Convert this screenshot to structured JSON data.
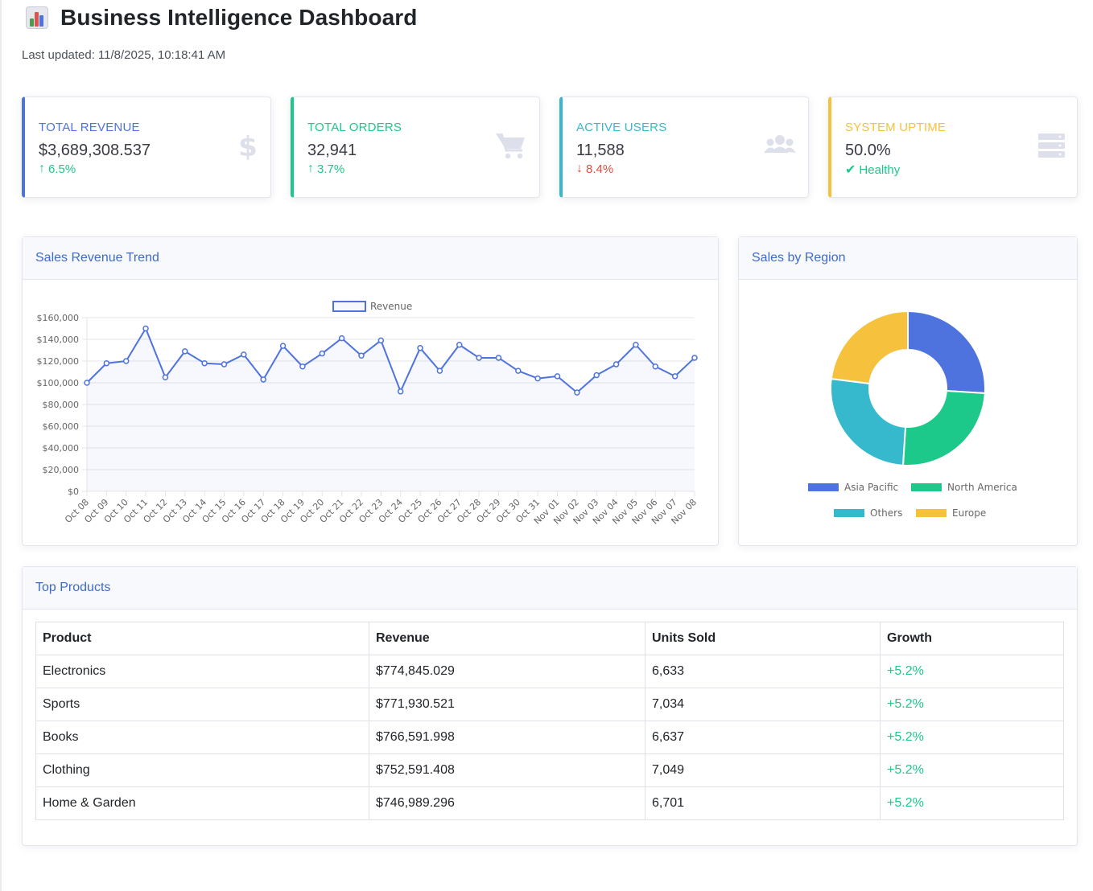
{
  "header": {
    "title": "Business Intelligence Dashboard",
    "last_updated_label": "Last updated:",
    "last_updated_value": "11/8/2025, 10:18:41 AM"
  },
  "kpis": [
    {
      "label": "Total Revenue",
      "value": "$3,689,308.537",
      "change": "6.5%",
      "direction": "up",
      "icon": "dollar-icon",
      "accent": "#4e73df"
    },
    {
      "label": "Total Orders",
      "value": "32,941",
      "change": "3.7%",
      "direction": "up",
      "icon": "cart-icon",
      "accent": "#1cc88a"
    },
    {
      "label": "Active Users",
      "value": "11,588",
      "change": "8.4%",
      "direction": "down",
      "icon": "users-icon",
      "accent": "#36b9cc"
    },
    {
      "label": "System Uptime",
      "value": "50.0%",
      "change": "Healthy",
      "direction": "check",
      "icon": "server-icon",
      "accent": "#f6c23e"
    }
  ],
  "colors": {
    "up": "#1cc88a",
    "down": "#e74a3b",
    "icon_muted": "#dddfeb",
    "line": "#4e73df"
  },
  "sales_trend": {
    "title": "Sales Revenue Trend",
    "chart_data": {
      "type": "line",
      "legend_position": "top-center",
      "grid": true,
      "categories": [
        "Oct 08",
        "Oct 09",
        "Oct 10",
        "Oct 11",
        "Oct 12",
        "Oct 13",
        "Oct 14",
        "Oct 15",
        "Oct 16",
        "Oct 17",
        "Oct 18",
        "Oct 19",
        "Oct 20",
        "Oct 21",
        "Oct 22",
        "Oct 23",
        "Oct 24",
        "Oct 25",
        "Oct 26",
        "Oct 27",
        "Oct 28",
        "Oct 29",
        "Oct 30",
        "Oct 31",
        "Nov 01",
        "Nov 02",
        "Nov 03",
        "Nov 04",
        "Nov 05",
        "Nov 06",
        "Nov 07",
        "Nov 08"
      ],
      "series": [
        {
          "name": "Revenue",
          "values": [
            100000,
            118000,
            120000,
            150000,
            105000,
            129000,
            118000,
            117000,
            126000,
            103000,
            134000,
            115000,
            127000,
            141000,
            125000,
            139000,
            92000,
            132000,
            111000,
            135000,
            123000,
            123000,
            111000,
            104000,
            106000,
            91000,
            107000,
            117000,
            135000,
            115000,
            106000,
            123000
          ]
        }
      ],
      "ylim": [
        0,
        160000
      ],
      "yticks": [
        "$0",
        "$20,000",
        "$40,000",
        "$60,000",
        "$80,000",
        "$100,000",
        "$120,000",
        "$140,000",
        "$160,000"
      ]
    }
  },
  "region": {
    "title": "Sales by Region",
    "chart_data": {
      "type": "pie",
      "legend_position": "bottom",
      "categories": [
        "Asia Pacific",
        "North America",
        "Others",
        "Europe"
      ],
      "values": [
        26,
        25,
        26,
        23
      ],
      "colors": [
        "#4e73df",
        "#1cc88a",
        "#36b9cc",
        "#f6c23e"
      ]
    }
  },
  "products": {
    "title": "Top Products",
    "columns": [
      "Product",
      "Revenue",
      "Units Sold",
      "Growth"
    ],
    "rows": [
      [
        "Electronics",
        "$774,845.029",
        "6,633",
        "+5.2%"
      ],
      [
        "Sports",
        "$771,930.521",
        "7,034",
        "+5.2%"
      ],
      [
        "Books",
        "$766,591.998",
        "6,637",
        "+5.2%"
      ],
      [
        "Clothing",
        "$752,591.408",
        "7,049",
        "+5.2%"
      ],
      [
        "Home & Garden",
        "$746,989.296",
        "6,701",
        "+5.2%"
      ]
    ]
  }
}
